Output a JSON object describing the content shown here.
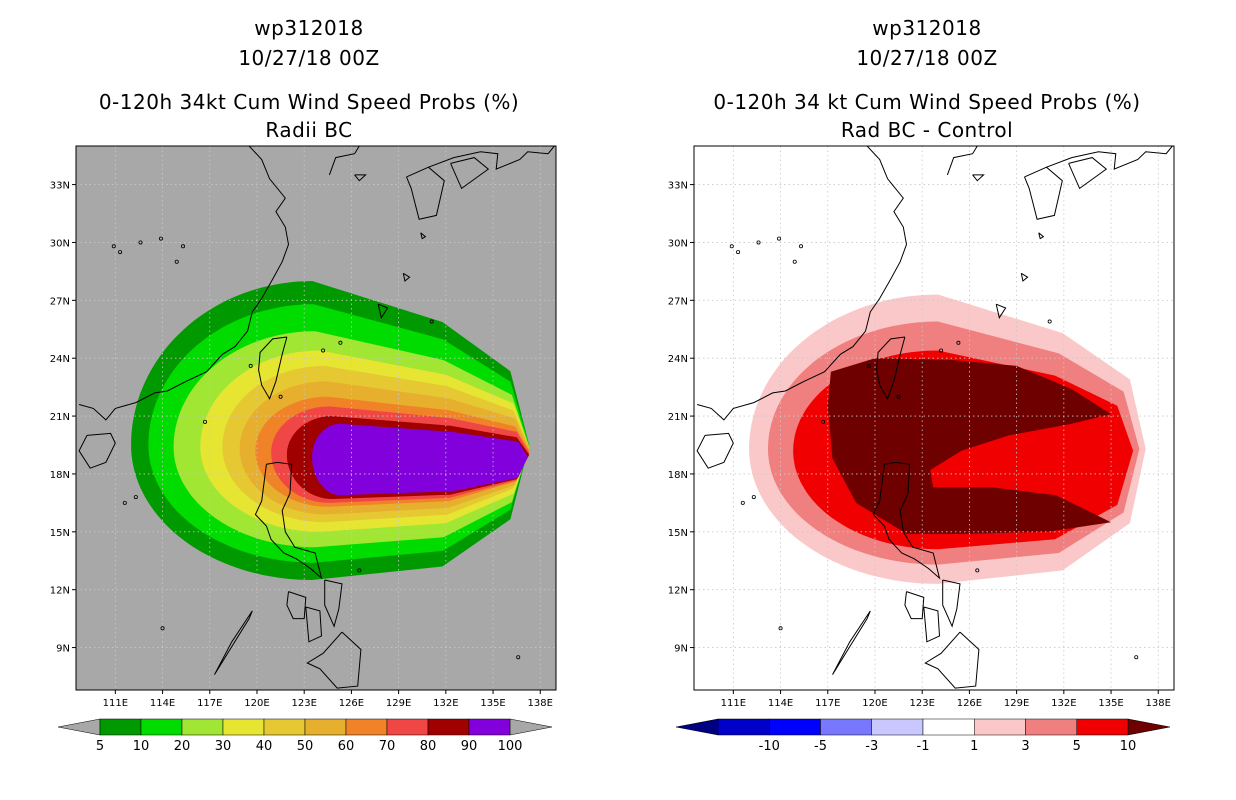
{
  "chart_data": [
    {
      "type": "heatmap",
      "storm_id": "wp312018",
      "datetime": "10/27/18 00Z",
      "title": "0-120h 34kt Cum Wind Speed Probs (%)",
      "subtitle": "Radii BC",
      "background_color": "#a8a8a8",
      "x_ticks": [
        "111E",
        "114E",
        "117E",
        "120E",
        "123E",
        "126E",
        "129E",
        "132E",
        "135E",
        "138E"
      ],
      "y_ticks": [
        "33N",
        "30N",
        "27N",
        "24N",
        "21N",
        "18N",
        "15N",
        "12N",
        "9N"
      ],
      "xlim": [
        108.5,
        139
      ],
      "ylim": [
        6.8,
        35
      ],
      "contour_levels": [
        {
          "min": 5,
          "color": "#009a00"
        },
        {
          "min": 10,
          "color": "#00dc00"
        },
        {
          "min": 20,
          "color": "#a0e632"
        },
        {
          "min": 30,
          "color": "#e6e632"
        },
        {
          "min": 40,
          "color": "#e6c832"
        },
        {
          "min": 50,
          "color": "#e6af2d"
        },
        {
          "min": 60,
          "color": "#f08228"
        },
        {
          "min": 70,
          "color": "#f04646"
        },
        {
          "min": 80,
          "color": "#a00000"
        },
        {
          "min": 90,
          "color": "#8200dc"
        }
      ],
      "colorbar_labels": [
        "5",
        "10",
        "20",
        "30",
        "40",
        "50",
        "60",
        "70",
        "80",
        "90",
        "100"
      ],
      "colorbar_colors": [
        "#009a00",
        "#00dc00",
        "#a0e632",
        "#e6e632",
        "#e6c832",
        "#e6af2d",
        "#f08228",
        "#f04646",
        "#a00000",
        "#8200dc"
      ],
      "colorbar_extend_color": "#a8a8a8"
    },
    {
      "type": "heatmap",
      "storm_id": "wp312018",
      "datetime": "10/27/18 00Z",
      "title": "0-120h 34 kt Cum Wind Speed Probs (%)",
      "subtitle": "Rad BC - Control",
      "background_color": "#ffffff",
      "x_ticks": [
        "111E",
        "114E",
        "117E",
        "120E",
        "123E",
        "126E",
        "129E",
        "132E",
        "135E",
        "138E"
      ],
      "y_ticks": [
        "33N",
        "30N",
        "27N",
        "24N",
        "21N",
        "18N",
        "15N",
        "12N",
        "9N"
      ],
      "xlim": [
        108.5,
        139
      ],
      "ylim": [
        6.8,
        35
      ],
      "contour_levels": [
        {
          "min": 1,
          "color": "#fac8c8"
        },
        {
          "min": 3,
          "color": "#f08080"
        },
        {
          "min": 5,
          "color": "#f00000"
        },
        {
          "min": 10,
          "color": "#6e0000"
        }
      ],
      "colorbar_labels": [
        "-10",
        "-5",
        "-3",
        "-1",
        "1",
        "3",
        "5",
        "10"
      ],
      "colorbar_colors": [
        "#0000c8",
        "#0000ff",
        "#7878ff",
        "#c8c8ff",
        "#ffffff",
        "#fac8c8",
        "#f08080",
        "#f00000"
      ],
      "colorbar_extend_low": "#000080",
      "colorbar_extend_high": "#6e0000"
    }
  ]
}
